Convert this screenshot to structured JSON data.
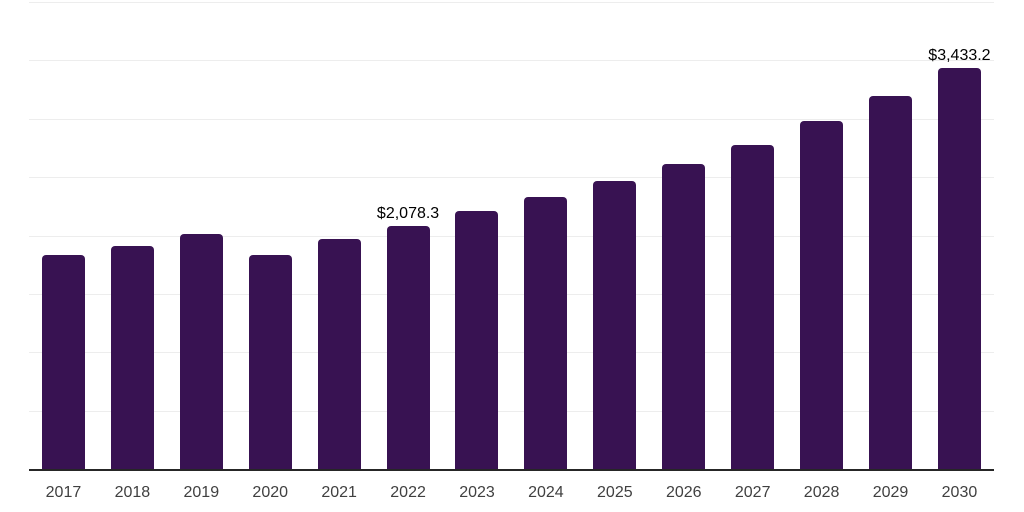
{
  "chart_data": {
    "type": "bar",
    "title": "",
    "categories": [
      "2017",
      "2018",
      "2019",
      "2020",
      "2021",
      "2022",
      "2023",
      "2024",
      "2025",
      "2026",
      "2027",
      "2028",
      "2029",
      "2030"
    ],
    "values": [
      1830,
      1910,
      2015,
      1832,
      1968,
      2078.3,
      2208,
      2327,
      2464,
      2615,
      2778,
      2983,
      3191,
      3433.2
    ],
    "data_labels": {
      "2022": "$2,078.3",
      "2030": "$3,433.2"
    },
    "xlabel": "",
    "ylabel": "",
    "ylim": [
      0,
      4000
    ],
    "gridline_step": 500,
    "grid": true,
    "legend": false,
    "colors": {
      "bar": "#381252",
      "axis": "#262626",
      "gridline": "#ededed",
      "tick_label": "#404040",
      "value_label": "#000000",
      "background": "#ffffff"
    }
  }
}
